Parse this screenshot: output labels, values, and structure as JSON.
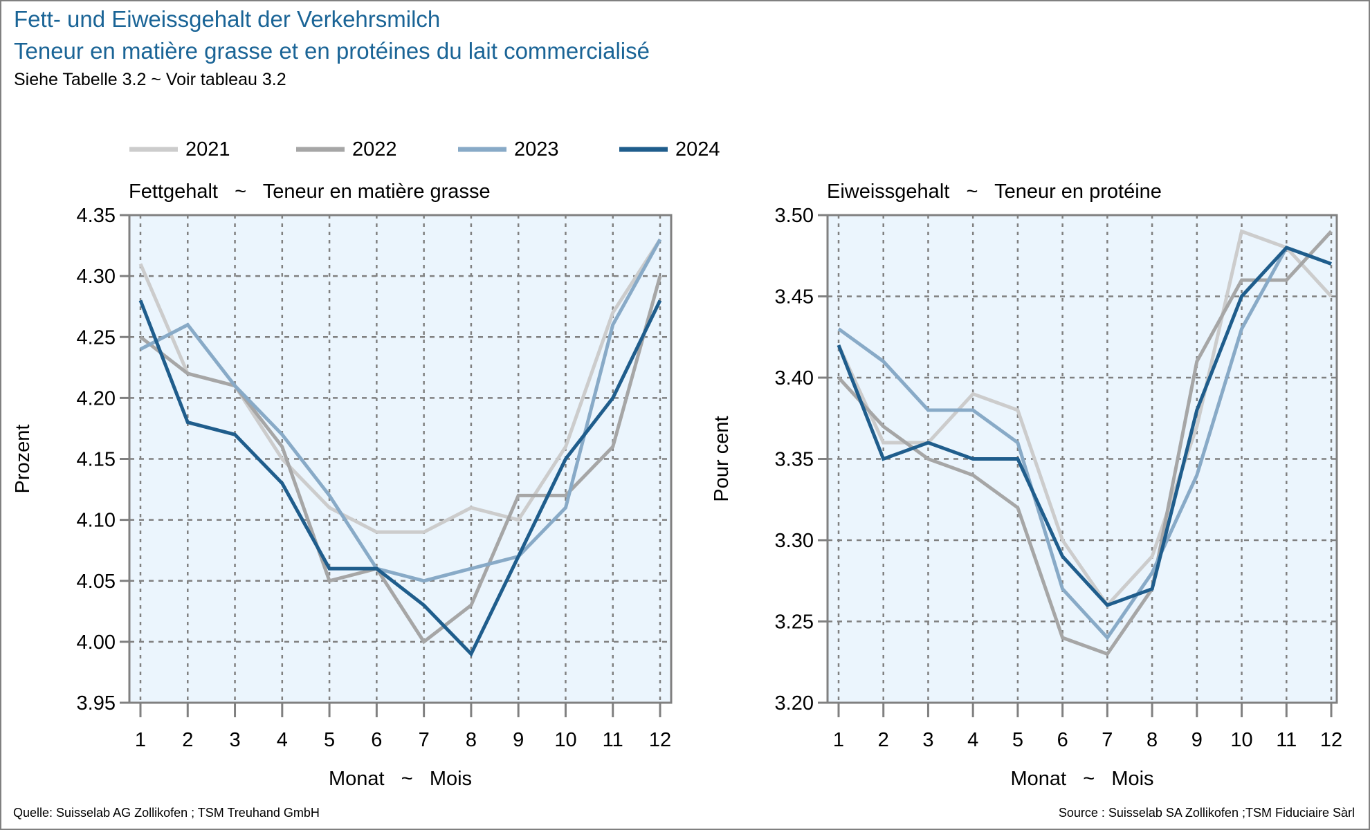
{
  "header": {
    "title_de": "Fett- und Eiweissgehalt der Verkehrsmilch",
    "title_fr": "Teneur en matière grasse et en protéines du lait commercialisé",
    "subtitle": "Siehe Tabelle 3.2   ~   Voir tableau 3.2"
  },
  "footer": {
    "source_de": "Quelle: Suisselab AG Zollikofen ; TSM Treuhand GmbH",
    "source_fr": "Source : Suisselab SA Zollikofen ;TSM Fiduciaire Sàrl"
  },
  "legend": {
    "placement": "top",
    "items": [
      {
        "label": "2021",
        "color": "#cccccc"
      },
      {
        "label": "2022",
        "color": "#a6a6a6"
      },
      {
        "label": "2023",
        "color": "#88aac7"
      },
      {
        "label": "2024",
        "color": "#1f5d8c"
      }
    ]
  },
  "colors": {
    "plot_background": "#ebf5fd",
    "axis": "#808080",
    "grid": "#808080",
    "title": "#1a6496"
  },
  "chart_data": [
    {
      "type": "line",
      "title": "Fettgehalt   ~   Teneur en matière grasse",
      "xlabel": "Monat   ~   Mois",
      "ylabel": "Prozent",
      "x": [
        1,
        2,
        3,
        4,
        5,
        6,
        7,
        8,
        9,
        10,
        11,
        12
      ],
      "xticks": [
        "1",
        "2",
        "3",
        "4",
        "5",
        "6",
        "7",
        "8",
        "9",
        "10",
        "11",
        "12"
      ],
      "ylim": [
        3.95,
        4.35
      ],
      "yticks": [
        "3.95",
        "4.00",
        "4.05",
        "4.10",
        "4.15",
        "4.20",
        "4.25",
        "4.30",
        "4.35"
      ],
      "grid": true,
      "series": [
        {
          "name": "2021",
          "values": [
            4.31,
            4.22,
            4.21,
            4.15,
            4.11,
            4.09,
            4.09,
            4.11,
            4.1,
            4.16,
            4.27,
            4.33
          ]
        },
        {
          "name": "2022",
          "values": [
            4.25,
            4.22,
            4.21,
            4.16,
            4.05,
            4.06,
            4.0,
            4.03,
            4.12,
            4.12,
            4.16,
            4.3
          ]
        },
        {
          "name": "2023",
          "values": [
            4.24,
            4.26,
            4.21,
            4.17,
            4.12,
            4.06,
            4.05,
            4.06,
            4.07,
            4.11,
            4.26,
            4.33
          ]
        },
        {
          "name": "2024",
          "values": [
            4.28,
            4.18,
            4.17,
            4.13,
            4.06,
            4.06,
            4.03,
            3.99,
            4.07,
            4.15,
            4.2,
            4.28
          ]
        }
      ]
    },
    {
      "type": "line",
      "title": "Eiweissgehalt   ~   Teneur en protéine",
      "xlabel": "Monat   ~   Mois",
      "ylabel": "Pour cent",
      "x": [
        1,
        2,
        3,
        4,
        5,
        6,
        7,
        8,
        9,
        10,
        11,
        12
      ],
      "xticks": [
        "1",
        "2",
        "3",
        "4",
        "5",
        "6",
        "7",
        "8",
        "9",
        "10",
        "11",
        "12"
      ],
      "ylim": [
        3.2,
        3.5
      ],
      "yticks": [
        "3.20",
        "3.25",
        "3.30",
        "3.35",
        "3.40",
        "3.45",
        "3.50"
      ],
      "grid": true,
      "series": [
        {
          "name": "2021",
          "values": [
            3.42,
            3.36,
            3.36,
            3.39,
            3.38,
            3.3,
            3.26,
            3.29,
            3.37,
            3.49,
            3.48,
            3.45
          ]
        },
        {
          "name": "2022",
          "values": [
            3.4,
            3.37,
            3.35,
            3.34,
            3.32,
            3.24,
            3.23,
            3.27,
            3.41,
            3.46,
            3.46,
            3.49
          ]
        },
        {
          "name": "2023",
          "values": [
            3.43,
            3.41,
            3.38,
            3.38,
            3.36,
            3.27,
            3.24,
            3.28,
            3.34,
            3.43,
            3.48,
            3.47
          ]
        },
        {
          "name": "2024",
          "values": [
            3.42,
            3.35,
            3.36,
            3.35,
            3.35,
            3.29,
            3.26,
            3.27,
            3.38,
            3.45,
            3.48,
            3.47
          ]
        }
      ]
    }
  ]
}
